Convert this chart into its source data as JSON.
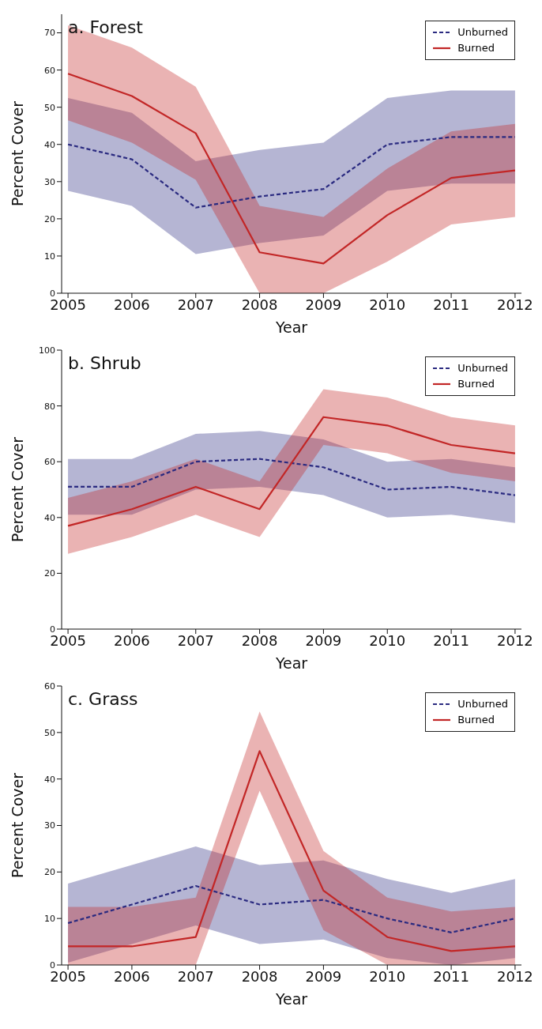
{
  "chart_data": [
    {
      "type": "line",
      "title": "a. Forest",
      "xlabel": "Year",
      "ylabel": "Percent Cover",
      "x": [
        2005,
        2006,
        2007,
        2008,
        2009,
        2010,
        2011,
        2012
      ],
      "xlim": [
        2004.9,
        2012.1
      ],
      "xticks": [
        2005,
        2006,
        2007,
        2008,
        2009,
        2010,
        2011,
        2012
      ],
      "ylim": [
        0,
        75
      ],
      "yticks": [
        0,
        10,
        20,
        30,
        40,
        50,
        60,
        70
      ],
      "legend": "top right",
      "marker": "none",
      "series": [
        {
          "name": "Unburned",
          "color": "#2a2a80",
          "line_style": "dashed",
          "values": [
            40,
            36,
            23,
            26,
            28,
            40,
            42,
            42
          ],
          "lower": [
            27.5,
            23.5,
            10.5,
            13.5,
            15.5,
            27.5,
            29.5,
            29.5
          ],
          "upper": [
            52.5,
            48.5,
            35.5,
            38.5,
            40.5,
            52.5,
            54.5,
            54.5
          ]
        },
        {
          "name": "Burned",
          "color": "#c22626",
          "line_style": "solid",
          "values": [
            59,
            53,
            43,
            11,
            8,
            21,
            31,
            33
          ],
          "lower": [
            46.5,
            40.5,
            30.5,
            0,
            0,
            8.5,
            18.5,
            20.5
          ],
          "upper": [
            72,
            66,
            55.5,
            23.5,
            20.5,
            33.5,
            43.5,
            45.5
          ]
        }
      ]
    },
    {
      "type": "line",
      "title": "b. Shrub",
      "xlabel": "Year",
      "ylabel": "Percent Cover",
      "x": [
        2005,
        2006,
        2007,
        2008,
        2009,
        2010,
        2011,
        2012
      ],
      "xlim": [
        2004.9,
        2012.1
      ],
      "xticks": [
        2005,
        2006,
        2007,
        2008,
        2009,
        2010,
        2011,
        2012
      ],
      "ylim": [
        0,
        100
      ],
      "yticks": [
        0,
        20,
        40,
        60,
        80,
        100
      ],
      "legend": "top right",
      "marker": "none",
      "series": [
        {
          "name": "Unburned",
          "color": "#2a2a80",
          "line_style": "dashed",
          "values": [
            51,
            51,
            60,
            61,
            58,
            50,
            51,
            48
          ],
          "lower": [
            41,
            41,
            50,
            51,
            48,
            40,
            41,
            38
          ],
          "upper": [
            61,
            61,
            70,
            71,
            68,
            60,
            61,
            58
          ]
        },
        {
          "name": "Burned",
          "color": "#c22626",
          "line_style": "solid",
          "values": [
            37,
            43,
            51,
            43,
            76,
            73,
            66,
            63
          ],
          "lower": [
            27,
            33,
            41,
            33,
            66,
            63,
            56,
            53
          ],
          "upper": [
            47,
            53,
            61,
            53,
            86,
            83,
            76,
            73
          ]
        }
      ]
    },
    {
      "type": "line",
      "title": "c. Grass",
      "xlabel": "Year",
      "ylabel": "Percent Cover",
      "x": [
        2005,
        2006,
        2007,
        2008,
        2009,
        2010,
        2011,
        2012
      ],
      "xlim": [
        2004.9,
        2012.1
      ],
      "xticks": [
        2005,
        2006,
        2007,
        2008,
        2009,
        2010,
        2011,
        2012
      ],
      "ylim": [
        0,
        60
      ],
      "yticks": [
        0,
        10,
        20,
        30,
        40,
        50,
        60
      ],
      "legend": "top right",
      "marker": "none",
      "series": [
        {
          "name": "Unburned",
          "color": "#2a2a80",
          "line_style": "dashed",
          "values": [
            9,
            13,
            17,
            13,
            14,
            10,
            7,
            10
          ],
          "lower": [
            0.5,
            4.5,
            8.5,
            4.5,
            5.5,
            1.5,
            0,
            1.5
          ],
          "upper": [
            17.5,
            21.5,
            25.5,
            21.5,
            22.5,
            18.5,
            15.5,
            18.5
          ]
        },
        {
          "name": "Burned",
          "color": "#c22626",
          "line_style": "solid",
          "values": [
            4,
            4,
            6,
            46,
            16,
            6,
            3,
            4
          ],
          "lower": [
            0,
            0,
            0,
            37.5,
            7.5,
            0,
            0,
            0
          ],
          "upper": [
            12.5,
            12.5,
            14.5,
            54.5,
            24.5,
            14.5,
            11.5,
            12.5
          ]
        }
      ]
    }
  ]
}
